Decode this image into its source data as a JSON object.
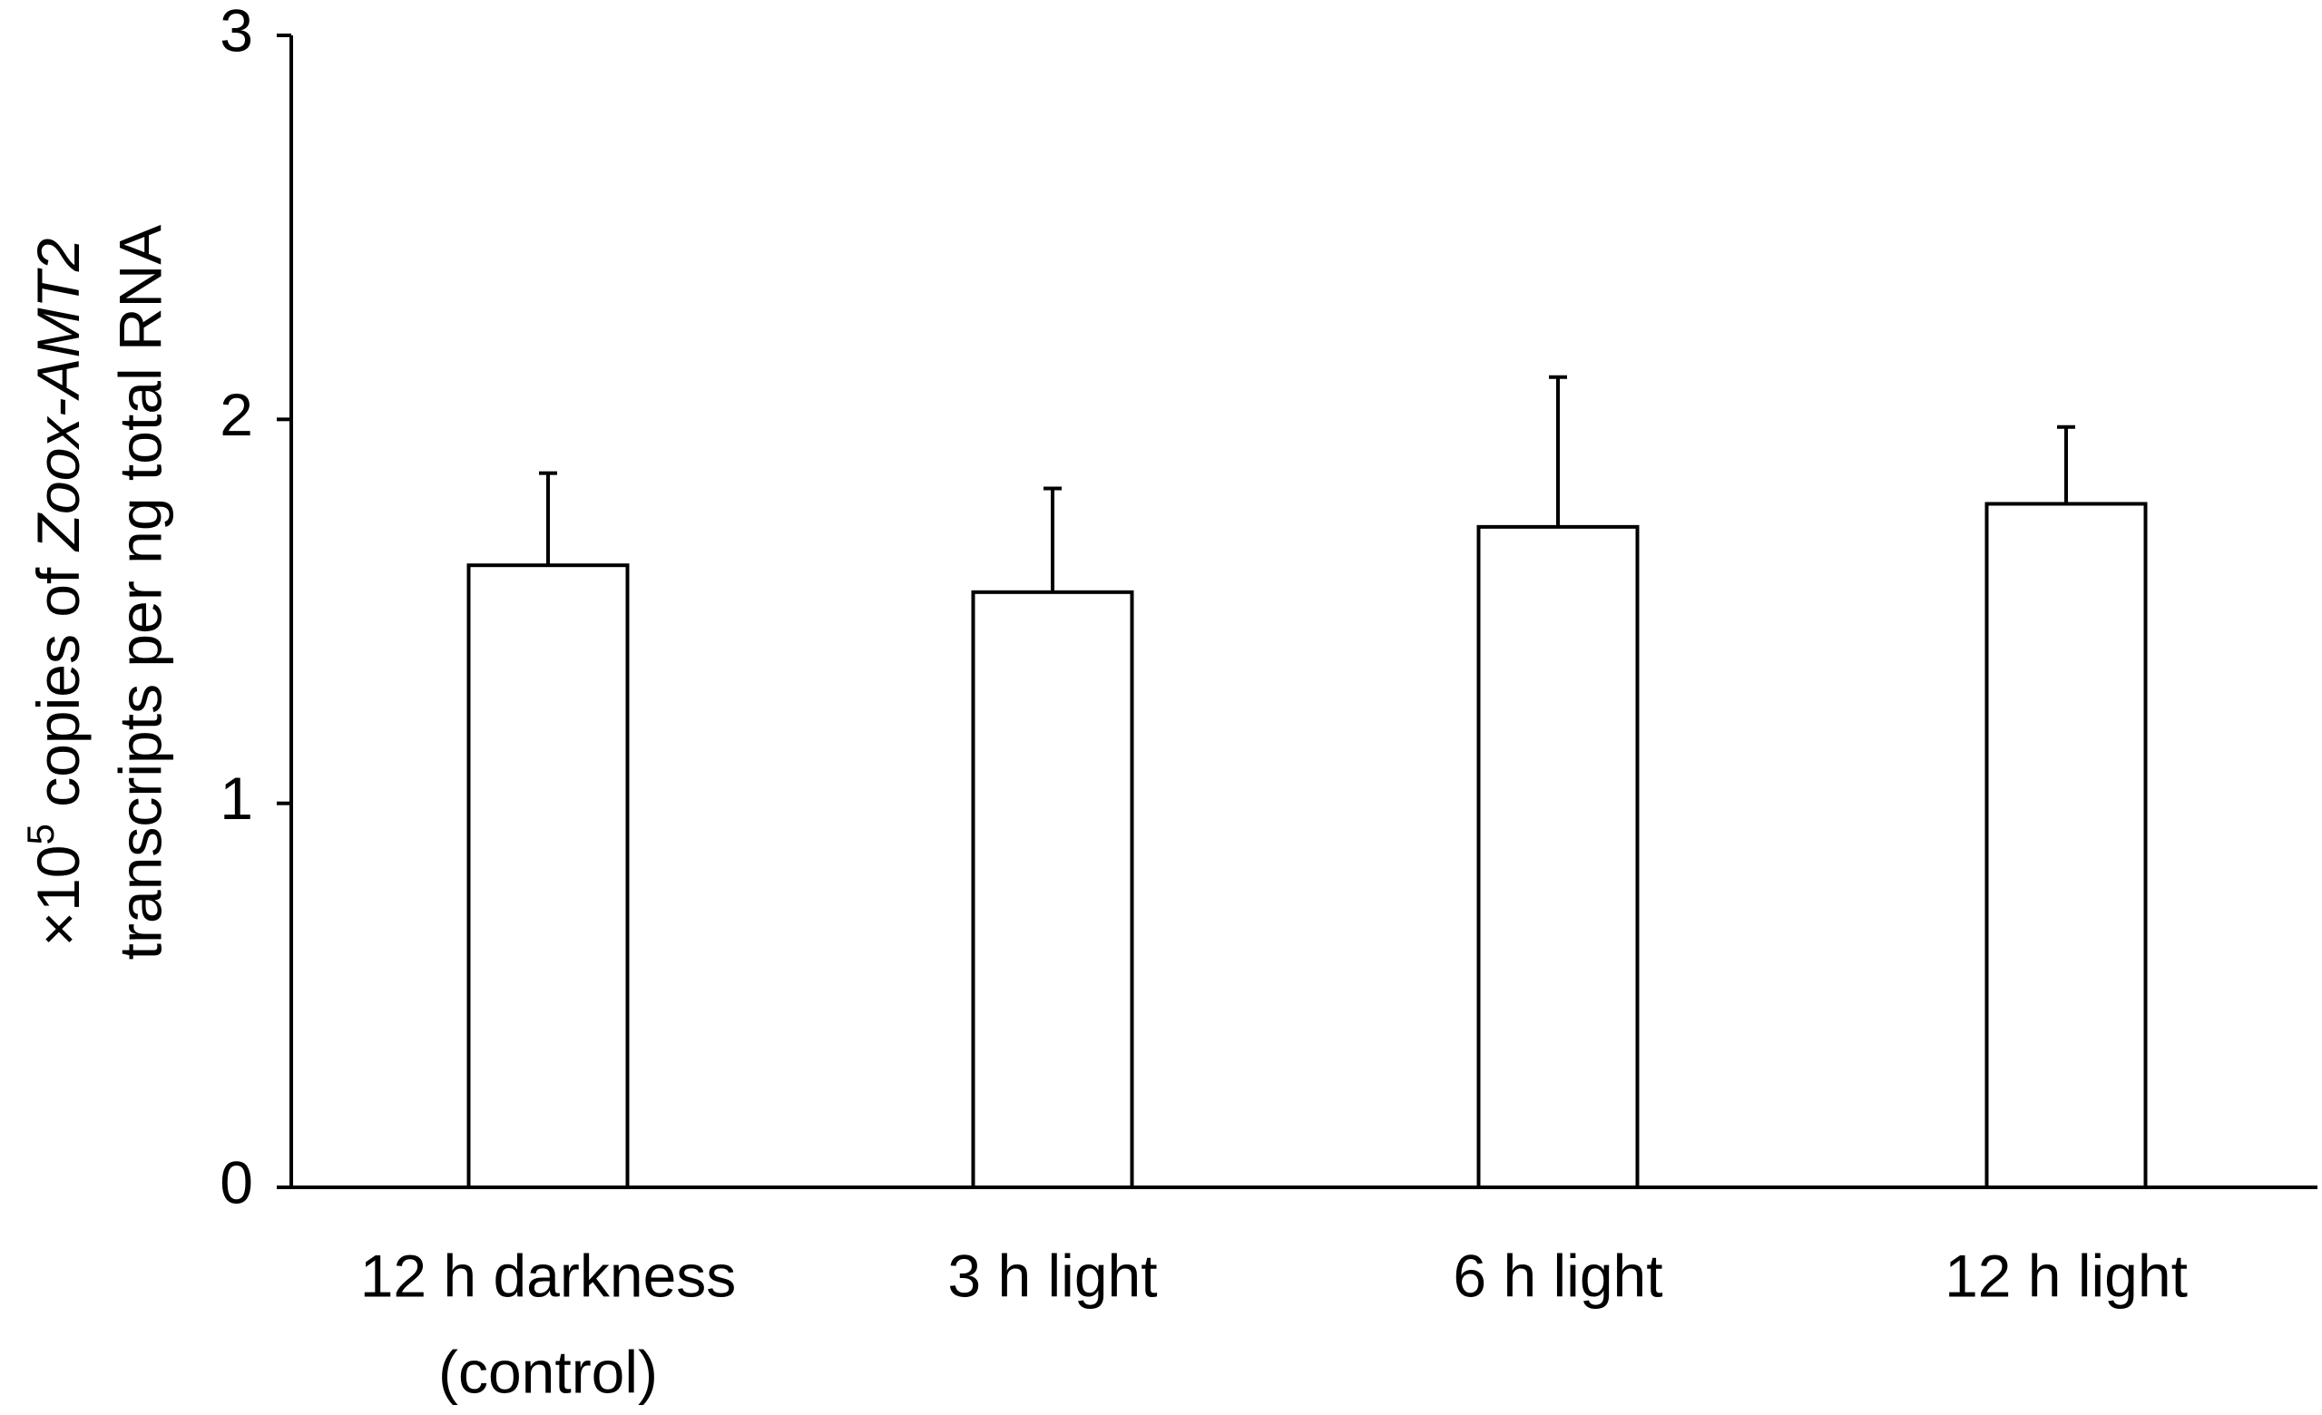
{
  "chart_data": {
    "type": "bar",
    "ylabel": {
      "prefix": "×10",
      "superscript": "5",
      "middle": " copies of ",
      "italic": "Zoox-AMT2",
      "line2": "transcripts per ng total RNA"
    },
    "categories": [
      [
        "12 h darkness",
        "(control)"
      ],
      [
        "3 h light"
      ],
      [
        "6 h light"
      ],
      [
        "12 h light"
      ]
    ],
    "values": [
      1.62,
      1.55,
      1.72,
      1.78
    ],
    "errors": [
      0.24,
      0.27,
      0.39,
      0.2
    ],
    "color": "#ffffff",
    "ylim": [
      0,
      3
    ],
    "yticks": [
      0,
      1,
      2,
      3
    ],
    "grid": false
  }
}
